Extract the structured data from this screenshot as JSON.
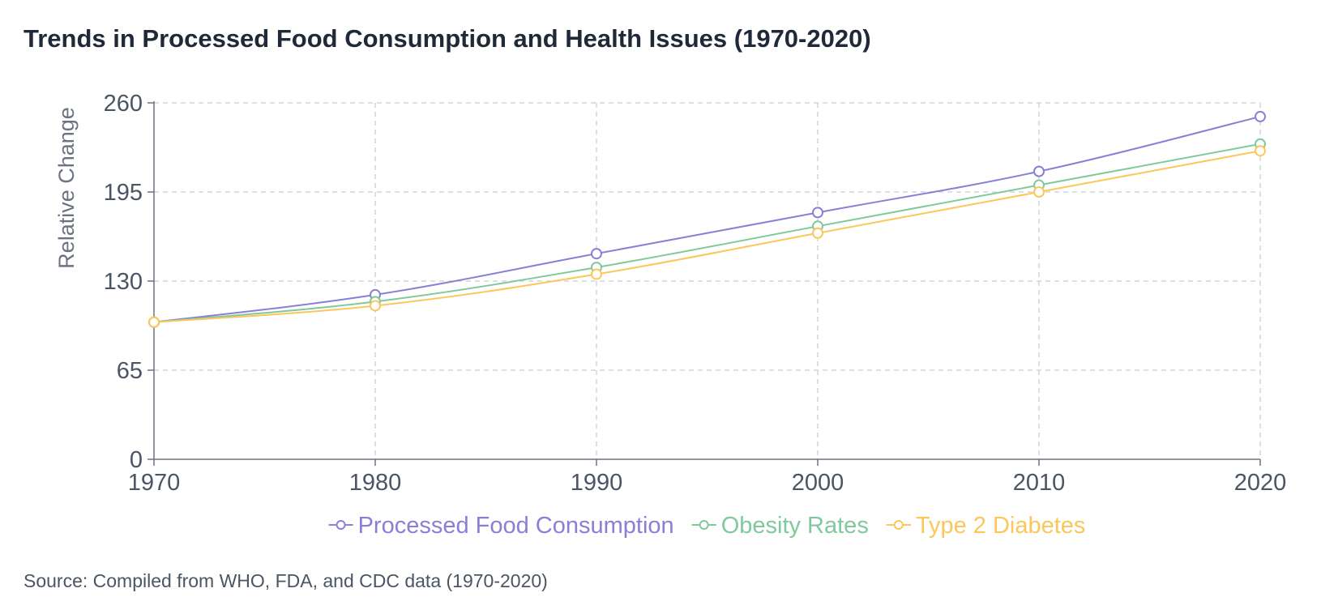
{
  "chart_data": {
    "type": "line",
    "title": "Trends in Processed Food Consumption and Health Issues (1970-2020)",
    "source": "Source: Compiled from WHO, FDA, and CDC data (1970-2020)",
    "xlabel": "",
    "ylabel": "Relative Change",
    "x": [
      1970,
      1980,
      1990,
      2000,
      2010,
      2020
    ],
    "x_ticks": [
      "1970",
      "1980",
      "1990",
      "2000",
      "2010",
      "2020"
    ],
    "y_ticks": [
      "0",
      "65",
      "130",
      "195",
      "260"
    ],
    "ylim": [
      0,
      260
    ],
    "xlim": [
      1970,
      2020
    ],
    "grid": true,
    "legend_position": "bottom",
    "series": [
      {
        "name": "Processed Food Consumption",
        "color": "#8a7fd6",
        "values": [
          100,
          120,
          150,
          180,
          210,
          250
        ]
      },
      {
        "name": "Obesity Rates",
        "color": "#7fc99a",
        "values": [
          100,
          115,
          140,
          170,
          200,
          230
        ]
      },
      {
        "name": "Type 2 Diabetes",
        "color": "#fbc75a",
        "values": [
          100,
          112,
          135,
          165,
          195,
          225
        ]
      }
    ]
  }
}
